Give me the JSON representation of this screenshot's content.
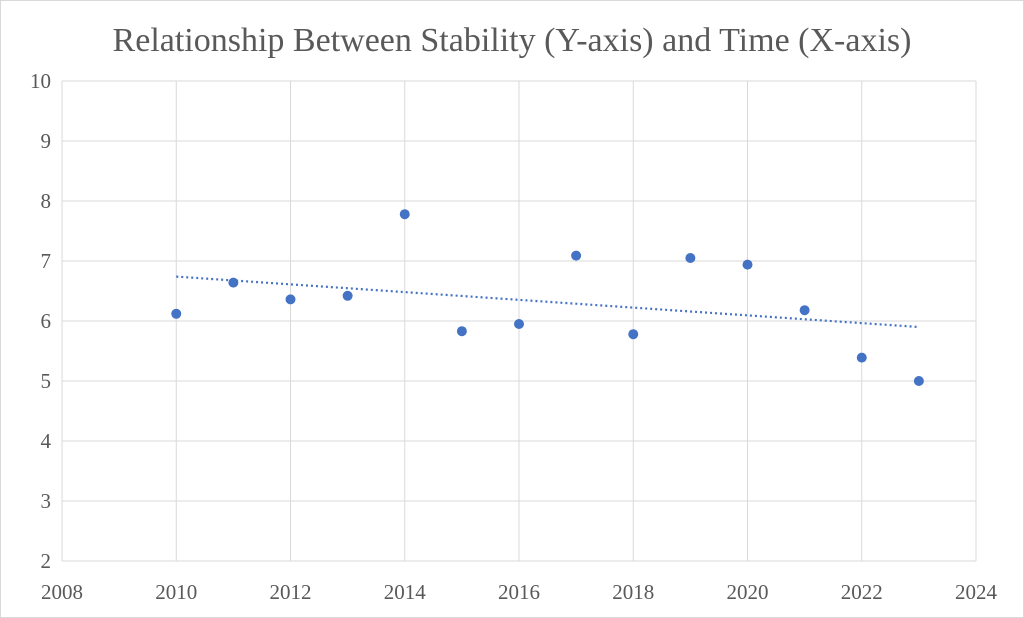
{
  "chart_data": {
    "type": "scatter",
    "title": "Relationship Between Stability (Y-axis) and Time (X-axis)",
    "xlabel": "",
    "ylabel": "",
    "xlim": [
      2008,
      2024
    ],
    "ylim": [
      2,
      10
    ],
    "x_ticks": [
      2008,
      2010,
      2012,
      2014,
      2016,
      2018,
      2020,
      2022,
      2024
    ],
    "y_ticks": [
      2,
      3,
      4,
      5,
      6,
      7,
      8,
      9,
      10
    ],
    "grid": true,
    "legend": "none",
    "series": [
      {
        "color": "#4472c4",
        "x": [
          2010,
          2011,
          2012,
          2013,
          2014,
          2015,
          2016,
          2017,
          2018,
          2019,
          2020,
          2021,
          2022,
          2023
        ],
        "y": [
          6.12,
          6.64,
          6.36,
          6.42,
          7.78,
          5.83,
          5.95,
          7.09,
          5.78,
          7.05,
          6.94,
          6.18,
          5.39,
          5.0
        ]
      }
    ],
    "trendline": {
      "type": "linear",
      "style": "dotted",
      "color": "#4472c4",
      "x": [
        2010,
        2023
      ],
      "y": [
        6.74,
        5.9
      ]
    }
  }
}
